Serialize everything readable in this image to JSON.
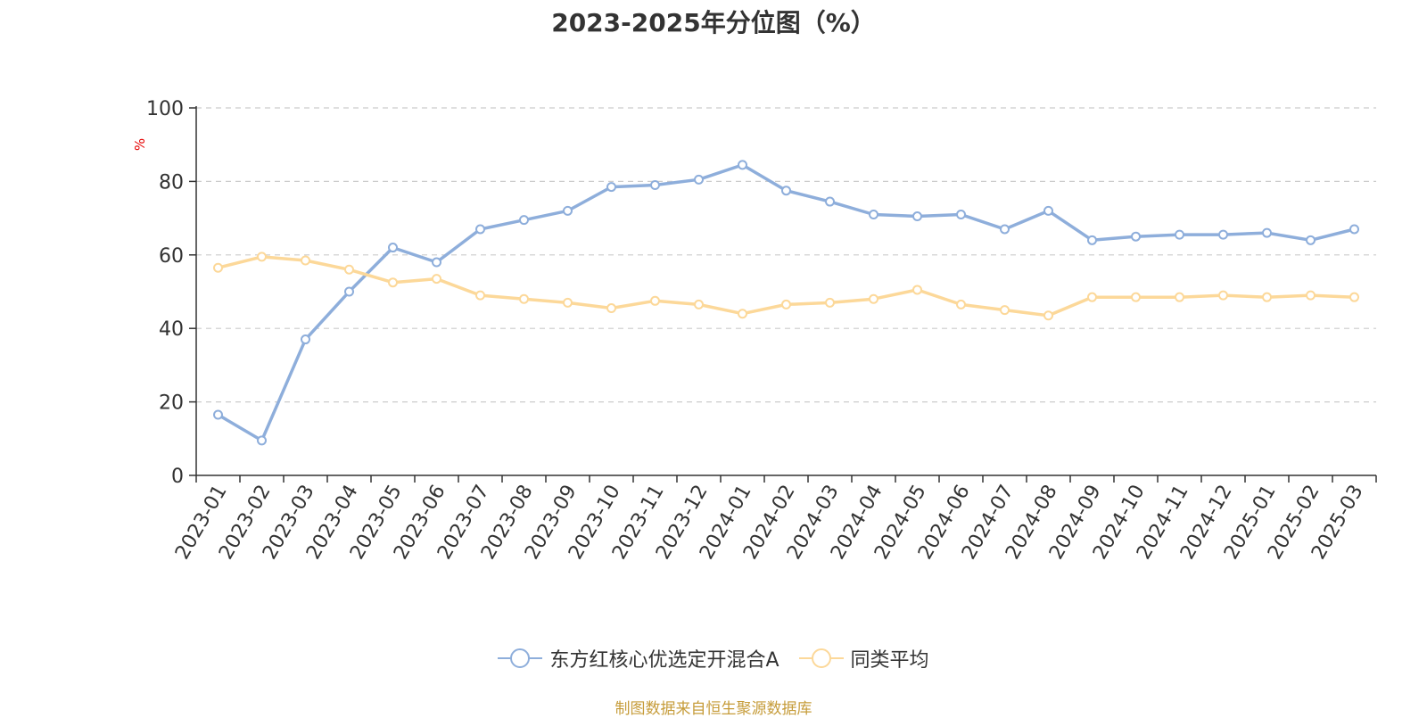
{
  "source_note": "制图数据来自恒生聚源数据库",
  "colors": {
    "series_a": "#8eaedb",
    "series_b": "#fcd899",
    "unit_label": "#e60000",
    "grid": "#cccccc",
    "axis": "#333333"
  },
  "chart_data": {
    "type": "line",
    "title": "2023-2025年分位图（%）",
    "ylabel": "%",
    "xlabel": "",
    "ylim": [
      0,
      100
    ],
    "yticks": [
      0,
      20,
      40,
      60,
      80,
      100
    ],
    "grid": true,
    "legend_position": "bottom",
    "categories": [
      "2023-01",
      "2023-02",
      "2023-03",
      "2023-04",
      "2023-05",
      "2023-06",
      "2023-07",
      "2023-08",
      "2023-09",
      "2023-10",
      "2023-11",
      "2023-12",
      "2024-01",
      "2024-02",
      "2024-03",
      "2024-04",
      "2024-05",
      "2024-06",
      "2024-07",
      "2024-08",
      "2024-09",
      "2024-10",
      "2024-11",
      "2024-12",
      "2025-01",
      "2025-02",
      "2025-03"
    ],
    "series": [
      {
        "name": "东方红核心优选定开混合A",
        "values": [
          16.5,
          9.5,
          37,
          50,
          62,
          58,
          67,
          69.5,
          72,
          78.5,
          79,
          80.5,
          84.5,
          77.5,
          74.5,
          71,
          70.5,
          71,
          67,
          72,
          64,
          65,
          65.5,
          65.5,
          66,
          64,
          67
        ]
      },
      {
        "name": "同类平均",
        "values": [
          56.5,
          59.5,
          58.5,
          56,
          52.5,
          53.5,
          49,
          48,
          47,
          45.5,
          47.5,
          46.5,
          44,
          46.5,
          47,
          48,
          50.5,
          46.5,
          45,
          43.5,
          48.5,
          48.5,
          48.5,
          49,
          48.5,
          49,
          48.5
        ]
      }
    ]
  }
}
